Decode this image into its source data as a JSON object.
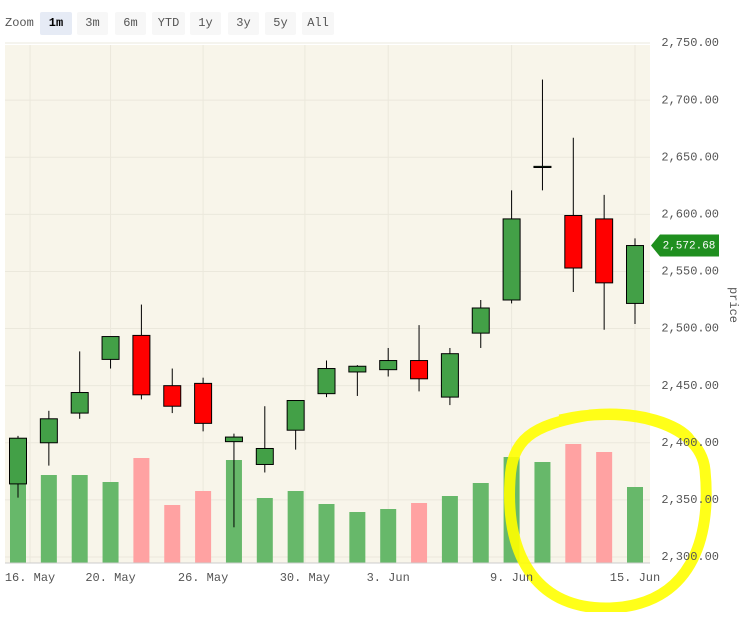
{
  "chart_data": {
    "type": "candlestick",
    "zoom": {
      "label": "Zoom",
      "buttons": [
        "1m",
        "3m",
        "6m",
        "YTD",
        "1y",
        "3y",
        "5y",
        "All"
      ],
      "selected": 0
    },
    "y_label": "price",
    "open": [
      2364,
      2400,
      2426,
      2473,
      2494,
      2450,
      2452,
      2401,
      2381,
      2411,
      2443,
      2462,
      2464,
      2472,
      2440,
      2496,
      2525,
      2641,
      2599,
      2596,
      2522
    ],
    "high": [
      2406,
      2428,
      2480,
      2493,
      2521,
      2465,
      2457,
      2408,
      2432,
      2437,
      2472,
      2468,
      2483,
      2503,
      2483,
      2525,
      2621,
      2718,
      2667,
      2617,
      2579
    ],
    "low": [
      2352,
      2380,
      2421,
      2465,
      2438,
      2426,
      2410,
      2326,
      2374,
      2394,
      2440,
      2441,
      2458,
      2445,
      2433,
      2483,
      2522,
      2621,
      2532,
      2499,
      2504
    ],
    "close": [
      2404,
      2421,
      2444,
      2493,
      2442,
      2432,
      2417,
      2405,
      2395,
      2437,
      2465,
      2467,
      2472,
      2456,
      2478,
      2518,
      2596,
      2642,
      2553,
      2540,
      2572.68
    ],
    "volume": [
      87,
      88,
      88,
      81,
      105,
      58,
      72,
      103,
      65,
      72,
      59,
      51,
      54,
      60,
      67,
      80,
      106,
      101,
      119,
      111,
      76
    ],
    "up_color": "#43a047",
    "down_color": "#ff0000",
    "volume_up_color": "#67b86a",
    "volume_down_color": "#ffa2a2",
    "last_price": {
      "value": 2572.68,
      "label": "2,572.68"
    },
    "ylim": [
      2300,
      2750
    ],
    "yticks": [
      {
        "value": 2300,
        "label": "2,300.00"
      },
      {
        "value": 2350,
        "label": "2,350.00"
      },
      {
        "value": 2400,
        "label": "2,400.00"
      },
      {
        "value": 2450,
        "label": "2,450.00"
      },
      {
        "value": 2500,
        "label": "2,500.00"
      },
      {
        "value": 2550,
        "label": "2,550.00"
      },
      {
        "value": 2600,
        "label": "2,600.00"
      },
      {
        "value": 2650,
        "label": "2,650.00"
      },
      {
        "value": 2700,
        "label": "2,700.00"
      },
      {
        "value": 2750,
        "label": "2,750.00"
      }
    ],
    "xlim": [
      -0.42,
      20.5
    ],
    "xticks": [
      {
        "value": 0.39,
        "label": "16. May"
      },
      {
        "value": 3,
        "label": "20. May"
      },
      {
        "value": 6,
        "label": "26. May"
      },
      {
        "value": 9.3,
        "label": "30. May"
      },
      {
        "value": 12,
        "label": "3. Jun"
      },
      {
        "value": 16,
        "label": "9. Jun"
      },
      {
        "value": 20,
        "label": "15. Jun"
      }
    ],
    "grid": true
  }
}
